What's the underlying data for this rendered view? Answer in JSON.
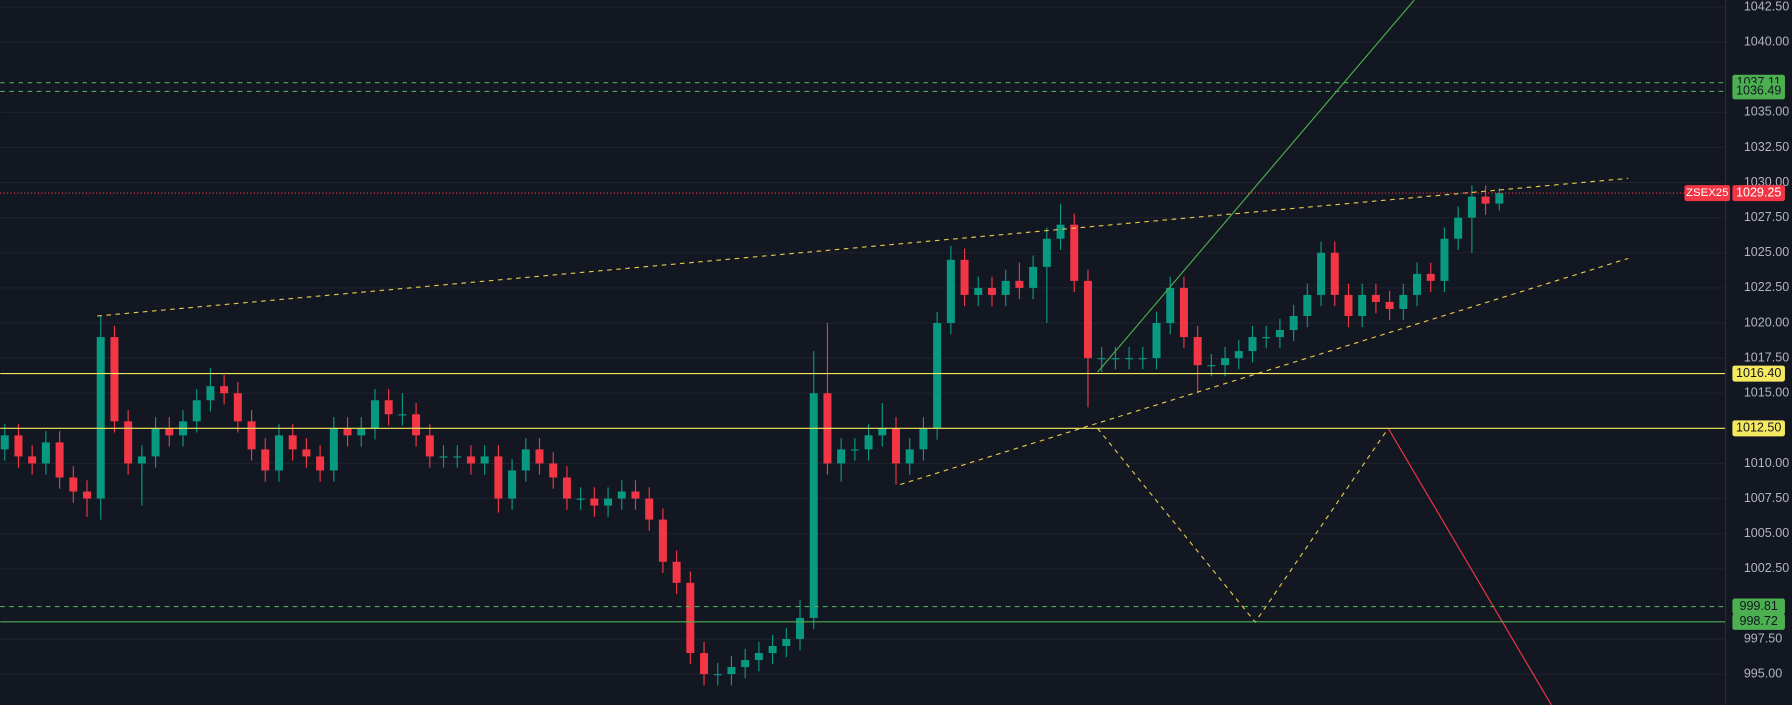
{
  "chart_data": {
    "type": "candlestick",
    "up_color": "#089981",
    "down_color": "#f23645",
    "grid": true,
    "ylim": [
      992.8,
      1043
    ],
    "yticks": [
      {
        "value": 1042.5,
        "label": "1042.50"
      },
      {
        "value": 1040,
        "label": "1040.00"
      },
      {
        "value": 1035,
        "label": "1035.00"
      },
      {
        "value": 1032.5,
        "label": "1032.50"
      },
      {
        "value": 1030,
        "label": "1030.00"
      },
      {
        "value": 1027.5,
        "label": "1027.50"
      },
      {
        "value": 1025,
        "label": "1025.00"
      },
      {
        "value": 1022.5,
        "label": "1022.50"
      },
      {
        "value": 1020,
        "label": "1020.00"
      },
      {
        "value": 1017.5,
        "label": "1017.50"
      },
      {
        "value": 1015,
        "label": "1015.00"
      },
      {
        "value": 1010,
        "label": "1010.00"
      },
      {
        "value": 1007.5,
        "label": "1007.50"
      },
      {
        "value": 1005,
        "label": "1005.00"
      },
      {
        "value": 1002.5,
        "label": "1002.50"
      },
      {
        "value": 997.5,
        "label": "997.50"
      },
      {
        "value": 995,
        "label": "995.00"
      }
    ],
    "open": [
      1011,
      1012,
      1010.5,
      1010,
      1011.5,
      1009,
      1008,
      1007.5,
      1019,
      1013,
      1010,
      1010.5,
      1012.5,
      1012,
      1013,
      1014.5,
      1015.5,
      1015,
      1013,
      1011,
      1009.5,
      1012,
      1011,
      1010.5,
      1009.5,
      1012.5,
      1012,
      1012.5,
      1014.5,
      1013.5,
      1013.5,
      1012,
      1010.5,
      1010.5,
      1010.5,
      1010,
      1010.5,
      1007.5,
      1009.5,
      1011,
      1010,
      1009,
      1007.5,
      1007.5,
      1007,
      1007.5,
      1008,
      1007.5,
      1006,
      1003,
      1001.5,
      996.5,
      995,
      995,
      995.5,
      996,
      996.5,
      997,
      997.5,
      999,
      1015,
      1010,
      1011,
      1011,
      1012,
      1012.5,
      1010,
      1011,
      1012.5,
      1020,
      1024.5,
      1022,
      1022.5,
      1022,
      1023,
      1022.5,
      1024,
      1026,
      1027,
      1023,
      1017.5,
      1017.5,
      1017.5,
      1017.5,
      1017.5,
      1020,
      1022.5,
      1019,
      1017,
      1017,
      1017.5,
      1018,
      1019,
      1019,
      1019.5,
      1020.5,
      1022,
      1025,
      1022,
      1020.5,
      1022,
      1021.5,
      1021,
      1022,
      1023.5,
      1023,
      1026,
      1027.5,
      1029,
      1028.5
    ],
    "high": [
      1012.8,
      1012.8,
      1011.3,
      1012.3,
      1012.3,
      1009.8,
      1008.8,
      1020.5,
      1019.8,
      1013.8,
      1011.3,
      1013.3,
      1013.3,
      1013.8,
      1015.3,
      1016.8,
      1016.3,
      1015.8,
      1013.8,
      1011.8,
      1012.8,
      1012.8,
      1011.8,
      1011.3,
      1013.3,
      1013.3,
      1013.3,
      1015.3,
      1015.3,
      1015,
      1014.3,
      1012.8,
      1011.3,
      1011.3,
      1011.3,
      1011.3,
      1011.3,
      1010.3,
      1011.8,
      1011.8,
      1010.8,
      1009.8,
      1008.3,
      1008.3,
      1008.3,
      1008.8,
      1008.8,
      1008.3,
      1006.8,
      1003.8,
      1002.3,
      997.3,
      995.8,
      996.3,
      996.8,
      997.3,
      997.8,
      998.3,
      1000.3,
      1018,
      1020,
      1011.8,
      1011.8,
      1012.8,
      1014.3,
      1013.3,
      1011.8,
      1013.3,
      1020.8,
      1025.5,
      1025.3,
      1023.3,
      1023.3,
      1023.8,
      1024.3,
      1024.8,
      1026.8,
      1028.5,
      1027.8,
      1023.8,
      1018.3,
      1018.3,
      1018.3,
      1018.3,
      1020.8,
      1023.3,
      1023.3,
      1019.8,
      1017.8,
      1018.3,
      1018.8,
      1019.8,
      1019.8,
      1020.3,
      1021.3,
      1022.8,
      1025.8,
      1025.8,
      1022.8,
      1022.8,
      1022.8,
      1022.3,
      1022.8,
      1024.3,
      1024.3,
      1026.8,
      1028.3,
      1029.8,
      1029.8,
      1029.6
    ],
    "low": [
      1010.2,
      1009.7,
      1009.2,
      1009.2,
      1008.2,
      1007.2,
      1006.2,
      1006,
      1012.2,
      1009.2,
      1007,
      1009.7,
      1011.2,
      1011.2,
      1012.2,
      1013.7,
      1014.2,
      1012.2,
      1010.2,
      1008.7,
      1008.7,
      1010.2,
      1009.7,
      1008.7,
      1008.7,
      1011.2,
      1011.2,
      1011.7,
      1012.7,
      1012.7,
      1011.2,
      1009.7,
      1009.7,
      1009.7,
      1009.2,
      1009.2,
      1006.5,
      1006.7,
      1008.7,
      1009.2,
      1008.2,
      1006.7,
      1006.7,
      1006.2,
      1006.2,
      1006.7,
      1006.7,
      1005.2,
      1002.2,
      1000.7,
      995.7,
      994.2,
      994.2,
      994.2,
      994.7,
      995.2,
      995.7,
      996.2,
      996.7,
      998.2,
      1009.2,
      1008.7,
      1010.2,
      1010.2,
      1011.2,
      1008.5,
      1009.2,
      1010.2,
      1011.7,
      1019.2,
      1021.2,
      1021.2,
      1021.2,
      1021.2,
      1021.7,
      1021.7,
      1020,
      1025.2,
      1022.2,
      1014,
      1016.5,
      1016.7,
      1016.7,
      1016.7,
      1016.7,
      1019.2,
      1018.2,
      1015,
      1016.2,
      1016.2,
      1016.7,
      1017.2,
      1018.2,
      1018.2,
      1018.7,
      1019.7,
      1021.2,
      1021.2,
      1019.7,
      1019.7,
      1020.7,
      1020.2,
      1020.2,
      1021.2,
      1022.2,
      1022.2,
      1025.2,
      1025,
      1027.7,
      1028
    ],
    "close": [
      1012,
      1010.5,
      1010,
      1011.5,
      1009,
      1008,
      1007.5,
      1019,
      1013,
      1010,
      1010.5,
      1012.5,
      1012,
      1013,
      1014.5,
      1015.5,
      1015,
      1013,
      1011,
      1009.5,
      1012,
      1011,
      1010.5,
      1009.5,
      1012.5,
      1012,
      1012.5,
      1014.5,
      1013.5,
      1013.5,
      1012,
      1010.5,
      1010.5,
      1010.5,
      1010,
      1010.5,
      1007.5,
      1009.5,
      1011,
      1010,
      1009,
      1007.5,
      1007.5,
      1007,
      1007.5,
      1008,
      1007.5,
      1006,
      1003,
      1001.5,
      996.5,
      995,
      995,
      995.5,
      996,
      996.5,
      997,
      997.5,
      999,
      1015,
      1010,
      1011,
      1011,
      1012,
      1012.5,
      1010,
      1011,
      1012.5,
      1020,
      1024.5,
      1022,
      1022.5,
      1022,
      1023,
      1022.5,
      1024,
      1026,
      1027,
      1023,
      1017.5,
      1017.5,
      1017.5,
      1017.5,
      1017.5,
      1020,
      1022.5,
      1019,
      1017,
      1017,
      1017.5,
      1018,
      1019,
      1019,
      1019.5,
      1020.5,
      1022,
      1025,
      1022,
      1020.5,
      1022,
      1021.5,
      1021,
      1022,
      1023.5,
      1023,
      1026,
      1027.5,
      1029,
      1028.5,
      1029.25
    ],
    "levels": [
      {
        "value": 1037.11,
        "label": "1037.11",
        "color": "#4caf50",
        "style": "dashed"
      },
      {
        "value": 1036.49,
        "label": "1036.49",
        "color": "#4caf50",
        "style": "dashed"
      },
      {
        "value": 1016.4,
        "label": "1016.40",
        "color": "#f5e960",
        "style": "solid"
      },
      {
        "value": 1012.5,
        "label": "1012.50",
        "color": "#f5e960",
        "style": "solid"
      },
      {
        "value": 999.81,
        "label": "999.81",
        "color": "#4caf50",
        "style": "dashed"
      },
      {
        "value": 998.72,
        "label": "998.72",
        "color": "#4caf50",
        "style": "solid"
      }
    ],
    "last": {
      "symbol": "ZSEX25",
      "value": 1029.25,
      "label": "1029.25",
      "color": "#f23645"
    },
    "drawings": [
      {
        "color": "#e6c84a",
        "dashed": true,
        "points": [
          [
            6.75,
            1020.5
          ],
          [
            118.4,
            1030.3
          ]
        ]
      },
      {
        "color": "#e6c84a",
        "dashed": true,
        "points": [
          [
            65.3,
            1008.5
          ],
          [
            118.4,
            1024.6
          ]
        ]
      },
      {
        "color": "#4caf50",
        "dashed": false,
        "points": [
          [
            79.7,
            1016.5
          ],
          [
            102.8,
            1043
          ]
        ]
      },
      {
        "color": "#e6c84a",
        "dashed": true,
        "points": [
          [
            79.7,
            1012.5
          ],
          [
            91.2,
            998.7
          ],
          [
            100.9,
            1012.5
          ]
        ]
      },
      {
        "color": "#f23645",
        "dashed": false,
        "points": [
          [
            100.9,
            1012.5
          ],
          [
            112.8,
            992.8
          ]
        ]
      }
    ]
  }
}
